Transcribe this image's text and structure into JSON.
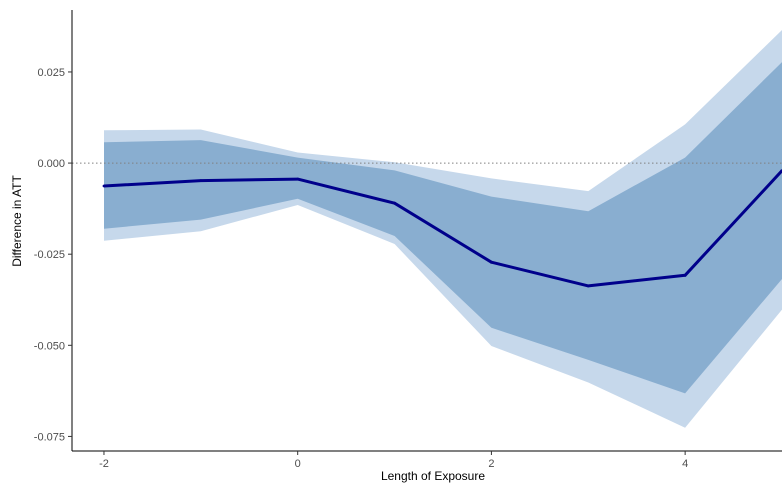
{
  "chart_data": {
    "type": "line",
    "title": "",
    "xlabel": "Length of Exposure",
    "ylabel": "Difference in ATT",
    "xlim": [
      -2.33,
      5.0
    ],
    "ylim": [
      -0.079,
      0.042
    ],
    "xticks": [
      -2,
      0,
      2,
      4
    ],
    "xtick_labels": [
      "-2",
      "0",
      "2",
      "4"
    ],
    "yticks": [
      0.025,
      0.0,
      -0.025,
      -0.05,
      -0.075
    ],
    "ytick_labels": [
      "0.025",
      "0.000",
      "-0.025",
      "-0.050",
      "-0.075"
    ],
    "grid": false,
    "reference_line": {
      "y": 0.0,
      "style": "dotted",
      "color": "#808080"
    },
    "x": [
      -2,
      -1,
      0,
      1,
      2,
      3,
      4,
      5
    ],
    "series": [
      {
        "type": "line",
        "values": [
          -0.0063,
          -0.0048,
          -0.0044,
          -0.011,
          -0.0272,
          -0.0337,
          -0.0308,
          -0.0021
        ],
        "color": "#00008B"
      },
      {
        "type": "band",
        "lower": [
          -0.0213,
          -0.0187,
          -0.0115,
          -0.0222,
          -0.0502,
          -0.0602,
          -0.0726,
          -0.0402
        ],
        "upper": [
          0.009,
          0.0092,
          0.0029,
          0.0002,
          -0.0042,
          -0.0077,
          0.0106,
          0.0365
        ],
        "color": "#C6D8EB"
      },
      {
        "type": "band",
        "lower": [
          -0.018,
          -0.0155,
          -0.0098,
          -0.02,
          -0.0452,
          -0.054,
          -0.0632,
          -0.0318
        ],
        "upper": [
          0.0057,
          0.0063,
          0.0015,
          -0.002,
          -0.0092,
          -0.0132,
          0.0015,
          0.0277
        ],
        "color": "#89AED0"
      }
    ]
  }
}
